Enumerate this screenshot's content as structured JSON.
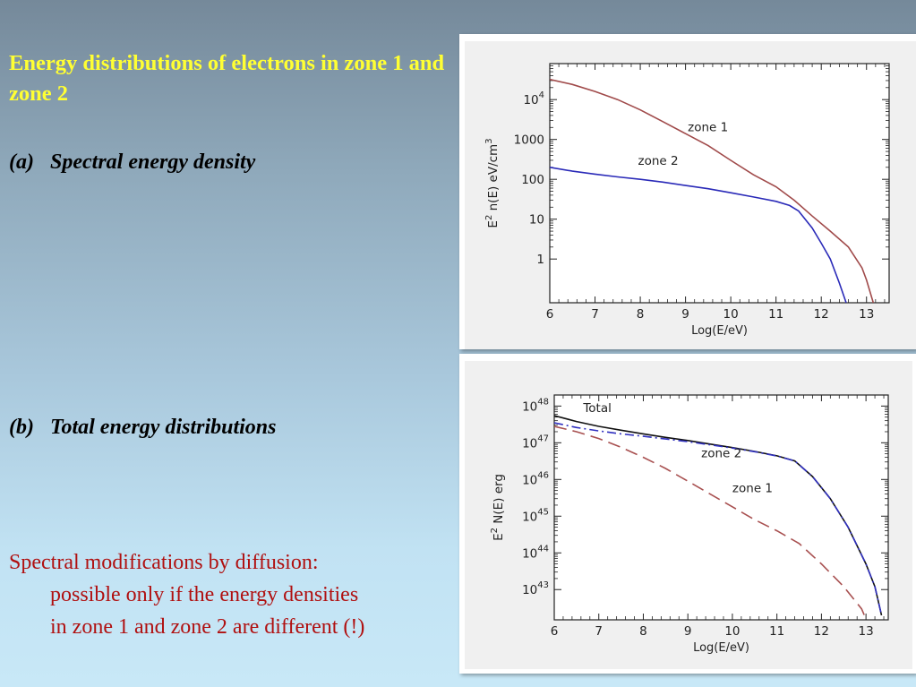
{
  "slide": {
    "title": "Energy distributions of electrons in zone 1   and   zone 2",
    "part_a_label": "(a)",
    "part_a_text": "Spectral energy density",
    "part_b_label": "(b)",
    "part_b_text": "Total energy distributions",
    "note_line1": "Spectral modifications by diffusion:",
    "note_line2": "possible only if the energy densities",
    "note_line3": "in zone 1 and zone 2 are different (!)"
  },
  "colors": {
    "title": "#ffff33",
    "note": "#b01010",
    "zone1": "#a04a4a",
    "zone2": "#2a2ab8",
    "total": "#111111",
    "zone1_dashed": "#a85050",
    "zone2_dashdot": "#3030c0"
  },
  "chart_data": [
    {
      "type": "line",
      "xlabel": "Log(E/eV)",
      "ylabel": "E^2 n(E) eV/cm^3",
      "xlim": [
        6,
        13.5
      ],
      "ylim": [
        0.08,
        80000
      ],
      "yscale": "log",
      "x_ticks": [
        "6",
        "7",
        "8",
        "9",
        "10",
        "11",
        "12",
        "13"
      ],
      "y_ticks": [
        {
          "value": 1,
          "label": "1",
          "exp": ""
        },
        {
          "value": 10,
          "label": "10",
          "exp": ""
        },
        {
          "value": 100,
          "label": "100",
          "exp": ""
        },
        {
          "value": 1000,
          "label": "1000",
          "exp": ""
        },
        {
          "value": 10000,
          "label": "10",
          "exp": "4"
        }
      ],
      "series": [
        {
          "name": "zone 1",
          "color": "#a04a4a",
          "dash": "",
          "points": [
            [
              6,
              32000
            ],
            [
              6.5,
              24000
            ],
            [
              7,
              16000
            ],
            [
              7.5,
              10000
            ],
            [
              8,
              5500
            ],
            [
              8.5,
              2800
            ],
            [
              9,
              1400
            ],
            [
              9.5,
              700
            ],
            [
              10,
              300
            ],
            [
              10.5,
              130
            ],
            [
              11,
              65
            ],
            [
              11.4,
              30
            ],
            [
              11.8,
              12
            ],
            [
              12.2,
              5
            ],
            [
              12.6,
              2
            ],
            [
              12.9,
              0.6
            ],
            [
              13.0,
              0.3
            ],
            [
              13.15,
              0.08
            ]
          ],
          "label_x": 9.05,
          "label_y": 1600
        },
        {
          "name": "zone 2",
          "color": "#2a2ab8",
          "dash": "",
          "points": [
            [
              6,
              200
            ],
            [
              6.5,
              160
            ],
            [
              7,
              135
            ],
            [
              7.5,
              115
            ],
            [
              8,
              100
            ],
            [
              8.5,
              85
            ],
            [
              9,
              70
            ],
            [
              9.5,
              58
            ],
            [
              10,
              46
            ],
            [
              10.5,
              36
            ],
            [
              11,
              28
            ],
            [
              11.3,
              22
            ],
            [
              11.5,
              16
            ],
            [
              11.8,
              6
            ],
            [
              12.0,
              2.5
            ],
            [
              12.2,
              1
            ],
            [
              12.4,
              0.25
            ],
            [
              12.55,
              0.08
            ]
          ],
          "label_x": 7.95,
          "label_y": 230
        }
      ]
    },
    {
      "type": "line",
      "xlabel": "Log(E/eV)",
      "ylabel": "E^2 N(E) erg",
      "xlim": [
        6,
        13.5
      ],
      "ylim": [
        1.5e+42,
        2e+48
      ],
      "yscale": "log",
      "x_ticks": [
        "6",
        "7",
        "8",
        "9",
        "10",
        "11",
        "12",
        "13"
      ],
      "y_ticks": [
        {
          "value": 1e+43,
          "label": "10",
          "exp": "43"
        },
        {
          "value": 1e+44,
          "label": "10",
          "exp": "44"
        },
        {
          "value": 1e+45,
          "label": "10",
          "exp": "45"
        },
        {
          "value": 1e+46,
          "label": "10",
          "exp": "46"
        },
        {
          "value": 1e+47,
          "label": "10",
          "exp": "47"
        },
        {
          "value": 1e+48,
          "label": "10",
          "exp": "48"
        }
      ],
      "series": [
        {
          "name": "Total",
          "color": "#111111",
          "dash": "",
          "points": [
            [
              6,
              5.5e+47
            ],
            [
              6.5,
              3.8e+47
            ],
            [
              7,
              2.8e+47
            ],
            [
              7.5,
              2.2e+47
            ],
            [
              8,
              1.75e+47
            ],
            [
              8.5,
              1.4e+47
            ],
            [
              9,
              1.15e+47
            ],
            [
              9.5,
              9.2e+46
            ],
            [
              10,
              7.4e+46
            ],
            [
              10.5,
              5.8e+46
            ],
            [
              11,
              4.4e+46
            ],
            [
              11.4,
              3.2e+46
            ],
            [
              11.8,
              1.2e+46
            ],
            [
              12.2,
              3e+45
            ],
            [
              12.6,
              5e+44
            ],
            [
              13.0,
              5e+43
            ],
            [
              13.2,
              1.2e+43
            ],
            [
              13.35,
              2e+42
            ]
          ],
          "label_x": 6.65,
          "label_y": 6.8e+47
        },
        {
          "name": "zone 2",
          "color": "#3030c0",
          "dash": "10,4,2,4",
          "points": [
            [
              6,
              3.5e+47
            ],
            [
              6.5,
              2.6e+47
            ],
            [
              7,
              2.1e+47
            ],
            [
              7.5,
              1.75e+47
            ],
            [
              8,
              1.5e+47
            ],
            [
              8.5,
              1.27e+47
            ],
            [
              9,
              1.07e+47
            ],
            [
              9.5,
              8.8e+46
            ],
            [
              10,
              7.2e+46
            ],
            [
              10.5,
              5.7e+46
            ],
            [
              11,
              4.35e+46
            ],
            [
              11.4,
              3.2e+46
            ],
            [
              11.8,
              1.2e+46
            ],
            [
              12.2,
              3e+45
            ],
            [
              12.6,
              5e+44
            ],
            [
              13.0,
              5e+43
            ],
            [
              13.2,
              1.2e+43
            ],
            [
              13.35,
              2e+42
            ]
          ],
          "label_x": 9.3,
          "label_y": 4e+46
        },
        {
          "name": "zone 1",
          "color": "#a85050",
          "dash": "14,7",
          "points": [
            [
              6,
              2.8e+47
            ],
            [
              6.5,
              2e+47
            ],
            [
              7,
              1.3e+47
            ],
            [
              7.5,
              7.5e+46
            ],
            [
              8,
              4e+46
            ],
            [
              8.5,
              2e+46
            ],
            [
              9,
              9e+45
            ],
            [
              9.5,
              4e+45
            ],
            [
              10,
              1.8e+45
            ],
            [
              10.5,
              8e+44
            ],
            [
              11,
              4e+44
            ],
            [
              11.5,
              1.8e+44
            ],
            [
              12,
              5e+43
            ],
            [
              12.5,
              1.2e+43
            ],
            [
              12.9,
              3e+42
            ],
            [
              13.0,
              1.6e+42
            ]
          ],
          "label_x": 10.0,
          "label_y": 4.5e+45
        }
      ]
    }
  ]
}
